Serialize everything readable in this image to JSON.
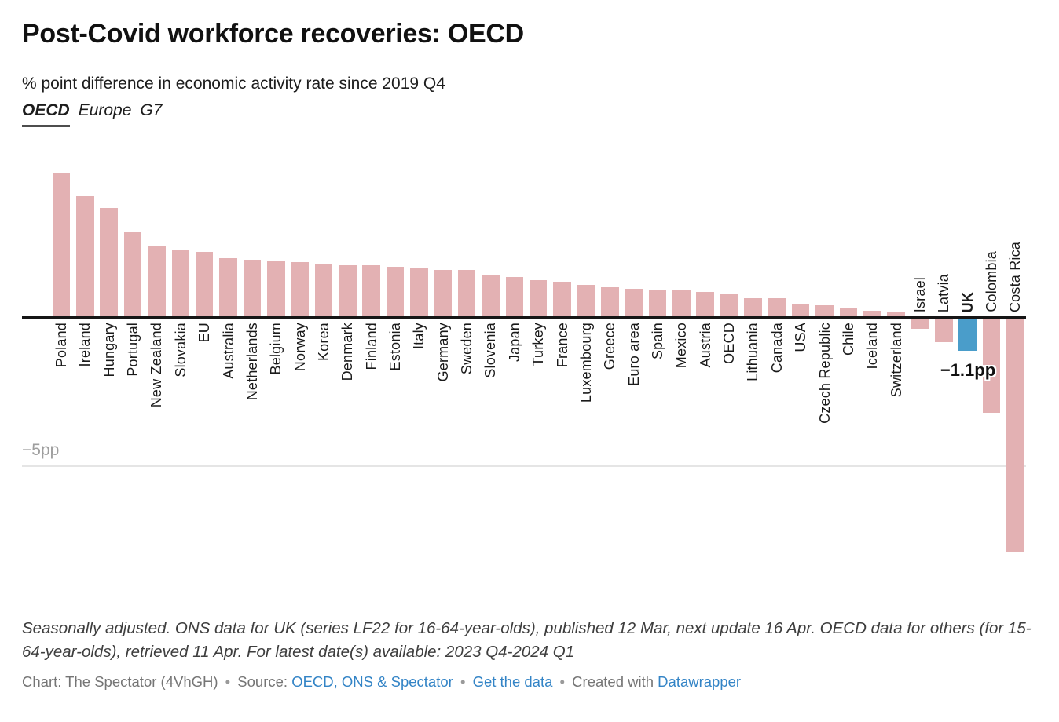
{
  "header": {
    "title": "Post-Covid workforce recoveries: OECD",
    "subtitle": "% point difference in economic activity rate since 2019 Q4",
    "tabs": [
      {
        "label": "OECD",
        "active": true
      },
      {
        "label": "Europe",
        "active": false
      },
      {
        "label": "G7",
        "active": false
      }
    ]
  },
  "chart_data": {
    "type": "bar",
    "title": "Post-Covid workforce recoveries: OECD",
    "subtitle": "% point difference in economic activity rate since 2019 Q4",
    "unit": "pp",
    "categories": [
      "Poland",
      "Ireland",
      "Hungary",
      "Portugal",
      "New Zealand",
      "Slovakia",
      "EU",
      "Australia",
      "Netherlands",
      "Belgium",
      "Norway",
      "Korea",
      "Denmark",
      "Finland",
      "Estonia",
      "Italy",
      "Germany",
      "Sweden",
      "Slovenia",
      "Japan",
      "Turkey",
      "France",
      "Luxembourg",
      "Greece",
      "Euro area",
      "Spain",
      "Mexico",
      "Austria",
      "OECD",
      "Lithuania",
      "Canada",
      "USA",
      "Czech Republic",
      "Chile",
      "Iceland",
      "Switzerland",
      "Israel",
      "Latvia",
      "UK",
      "Colombia",
      "Costa Rica"
    ],
    "values": [
      4.9,
      4.1,
      3.7,
      2.9,
      2.4,
      2.25,
      2.2,
      2.0,
      1.95,
      1.9,
      1.85,
      1.8,
      1.75,
      1.75,
      1.7,
      1.65,
      1.6,
      1.6,
      1.4,
      1.35,
      1.25,
      1.2,
      1.1,
      1.0,
      0.95,
      0.9,
      0.9,
      0.85,
      0.8,
      0.65,
      0.65,
      0.45,
      0.4,
      0.3,
      0.2,
      0.15,
      -0.35,
      -0.8,
      -1.1,
      -3.2,
      -7.9
    ],
    "highlight_category": "UK",
    "bold_categories": [
      "UK"
    ],
    "annotation": {
      "text": "−1.1pp",
      "category": "UK"
    },
    "axis": {
      "gridline_label": "−5pp",
      "gridline_value": -5,
      "baseline_value": 0
    },
    "ylim": [
      -8.5,
      5.2
    ],
    "grid": "horizontal-single",
    "legend": "none",
    "colors": {
      "bar": "#e3b1b3",
      "highlight": "#4a9dca"
    }
  },
  "footer": {
    "note": "Seasonally adjusted. ONS data for UK (series LF22 for 16-64-year-olds), published 12 Mar, next update 16 Apr. OECD data for others (for 15-64-year-olds), retrieved 11 Apr. For latest date(s) available: 2023 Q4-2024 Q1",
    "chart_credit": "Chart: The Spectator (4VhGH)",
    "separator": "•",
    "source_label": "Source:",
    "source_link": "OECD, ONS & Spectator",
    "get_data_link": "Get the data",
    "created_with_label": "Created with",
    "created_with_link": "Datawrapper"
  }
}
